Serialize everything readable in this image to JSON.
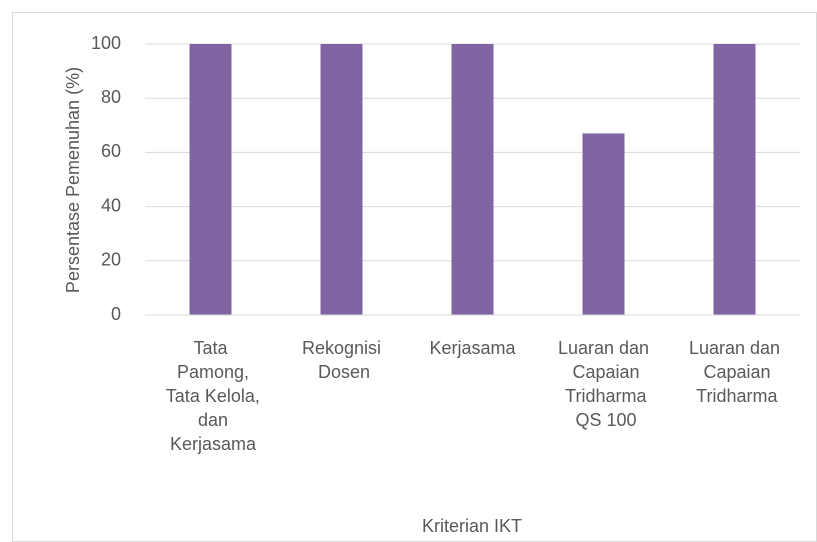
{
  "chart_data": {
    "type": "bar",
    "x_label": "Kriterian IKT",
    "y_label": "Persentase Pemenuhan (%)",
    "categories": [
      "Tata Pamong, Tata Kelola, dan Kerjasama",
      "Rekognisi Dosen",
      "Kerjasama",
      "Luaran dan Capaian Tridharma QS 100",
      "Luaran dan Capaian Tridharma"
    ],
    "values": [
      100,
      100,
      100,
      67,
      100
    ],
    "color": "#8064a2",
    "ylim": [
      0,
      100
    ],
    "yticks": [
      0,
      20,
      40,
      60,
      80,
      100
    ],
    "grid": true
  }
}
